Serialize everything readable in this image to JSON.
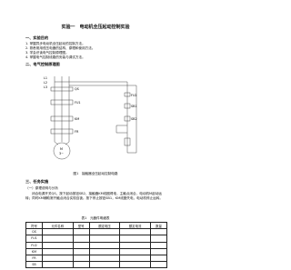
{
  "header": {
    "title": "实验一　电动机全压起动控制实验"
  },
  "sections": [
    {
      "heading": "一、实验目的",
      "items": [
        "1. 掌握异步电动机全压起动的控制方法。",
        "2. 熟悉常用低压电器的结构、原理和使用方法。",
        "3. 学会识读电气控制原理图。",
        "4. 掌握电气控制线路的安装与调试方法。"
      ]
    },
    {
      "heading": "二、电气控制原理图"
    },
    {
      "heading": "三、任务实施",
      "subheading": "（一）原理说明与分析",
      "paragraph": "闭合电源开关QS，按下起动按钮SB2，接触器KM线圈得电，主触点闭合，电动机M起动运转；同时KM辅助常开触点闭合实现自锁。按下停止按钮SB1，KM线圈失电，电动机停止运转。"
    }
  ],
  "diagram": {
    "labels": [
      "L1",
      "L2",
      "L3",
      "QS",
      "FU1",
      "FU2",
      "KM",
      "FR",
      "SB1",
      "SB2",
      "M",
      "3~"
    ],
    "caption": "图1　接触器全压起动控制电路"
  },
  "table": {
    "caption": "表1　元器件明细表",
    "header": [
      "符号",
      "元件名称",
      "型号",
      "额定电压",
      "额定电流",
      "数量"
    ],
    "rows": [
      [
        "QS"
      ],
      [
        "FU1"
      ],
      [
        "FU2"
      ],
      [
        "KM"
      ],
      [
        "FR"
      ],
      [
        "SB"
      ]
    ]
  }
}
